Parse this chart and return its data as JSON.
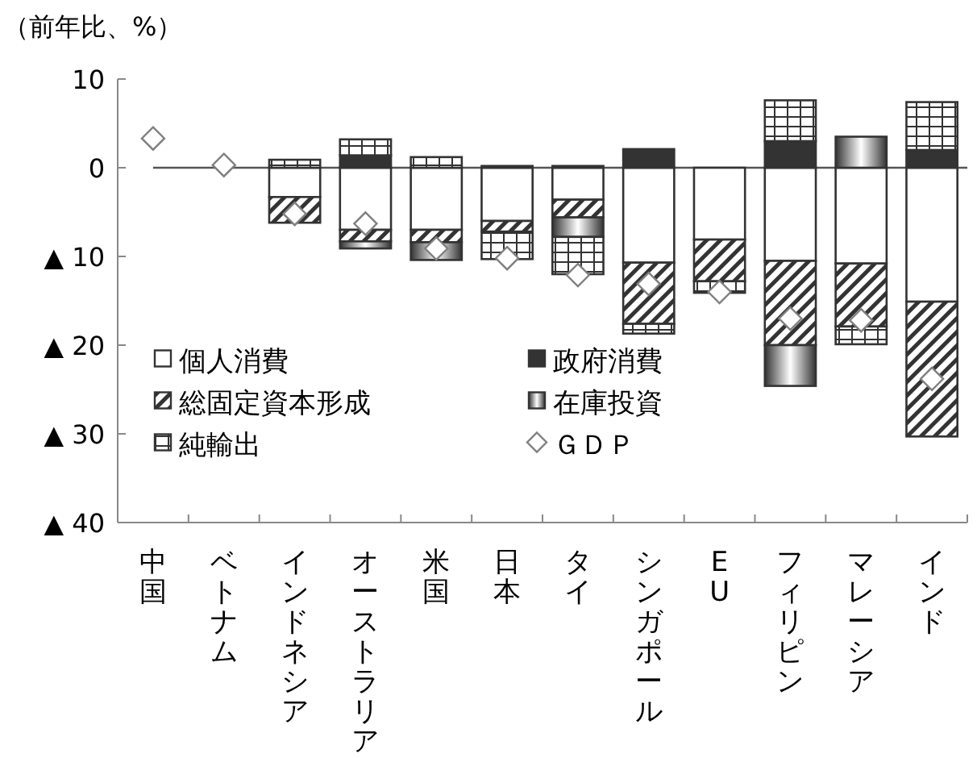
{
  "chart_data": {
    "type": "bar",
    "stacked": true,
    "ylabel": "（前年比、%）",
    "categories": [
      "中国",
      "ベトナム",
      "インドネシア",
      "オーストラリア",
      "米国",
      "日本",
      "タイ",
      "シンガポール",
      "EU",
      "フィリピン",
      "マレーシア",
      "インド"
    ],
    "series": [
      {
        "name": "個人消費",
        "color": "#ffffff",
        "values": [
          null,
          null,
          -3.3,
          -7.0,
          -7.0,
          -6.0,
          -3.6,
          -10.7,
          -8.1,
          -10.5,
          -10.8,
          -15.1
        ]
      },
      {
        "name": "政府消費",
        "color": "#333333",
        "values": [
          null,
          null,
          null,
          1.4,
          null,
          0.2,
          0.2,
          2.1,
          null,
          3.0,
          null,
          2.0
        ]
      },
      {
        "name": "総固定資本形成",
        "color": "#333333",
        "values": [
          null,
          null,
          -2.9,
          -1.3,
          -1.4,
          -1.2,
          -2.0,
          -6.9,
          -4.7,
          -9.5,
          -7.1,
          -15.2
        ]
      },
      {
        "name": "在庫投資",
        "color": "#333333",
        "values": [
          null,
          null,
          null,
          -0.8,
          -2.0,
          null,
          -2.2,
          null,
          null,
          -4.6,
          3.5,
          null
        ]
      },
      {
        "name": "純輸出",
        "color": "#333333",
        "values": [
          null,
          null,
          0.9,
          1.8,
          1.2,
          -3.1,
          -4.2,
          -1.1,
          -1.3,
          4.6,
          -2.0,
          5.4
        ]
      },
      {
        "name": "ＧＤＰ",
        "type": "scatter",
        "marker": "diamond",
        "color": "#808080",
        "values": [
          3.3,
          0.3,
          -5.2,
          -6.3,
          -9.1,
          -10.2,
          -12.1,
          -13.1,
          -14.0,
          -17.0,
          -17.2,
          -23.8
        ]
      }
    ],
    "ylim": [
      -40,
      10
    ],
    "yticks": [
      10,
      0,
      {
        "value": -10,
        "label": "▲ 10"
      },
      {
        "value": -20,
        "label": "▲ 20"
      },
      {
        "value": -30,
        "label": "▲ 30"
      },
      {
        "value": -40,
        "label": "▲ 40"
      }
    ],
    "ref_lines": [
      {
        "axis": "y",
        "value": 0,
        "color": "#555555"
      }
    ],
    "grid": false,
    "legend": "bottom left"
  }
}
